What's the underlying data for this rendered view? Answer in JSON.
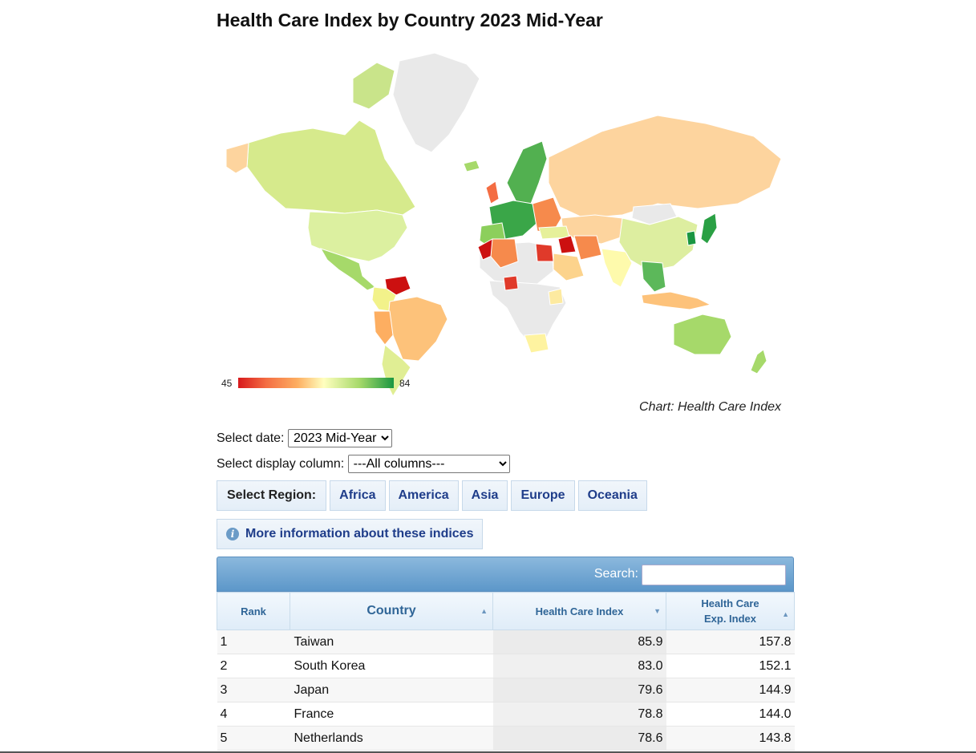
{
  "title": "Health Care Index by Country 2023 Mid-Year",
  "map": {
    "legend_min": "45",
    "legend_max": "84",
    "credit": "Chart: Health Care Index",
    "colors": {
      "high": "#1a9641",
      "mid_high": "#a6d96a",
      "mid": "#ffffbf",
      "mid_low": "#fdae61",
      "low": "#d7191c",
      "no_data": "#e9e9e9"
    }
  },
  "controls": {
    "date_label": "Select date:",
    "date_value": "2023 Mid-Year",
    "column_label": "Select display column:",
    "column_value": "---All columns---"
  },
  "regions": {
    "label": "Select Region:",
    "items": [
      "Africa",
      "America",
      "Asia",
      "Europe",
      "Oceania"
    ]
  },
  "info_button": "More information about these indices",
  "table": {
    "search_label": "Search:",
    "search_value": "",
    "columns": [
      "Rank",
      "Country",
      "Health Care Index",
      "Health Care Exp. Index"
    ],
    "rows": [
      {
        "rank": "1",
        "country": "Taiwan",
        "hci": "85.9",
        "exp": "157.8"
      },
      {
        "rank": "2",
        "country": "South Korea",
        "hci": "83.0",
        "exp": "152.1"
      },
      {
        "rank": "3",
        "country": "Japan",
        "hci": "79.6",
        "exp": "144.9"
      },
      {
        "rank": "4",
        "country": "France",
        "hci": "78.8",
        "exp": "144.0"
      },
      {
        "rank": "5",
        "country": "Netherlands",
        "hci": "78.6",
        "exp": "143.8"
      }
    ]
  }
}
